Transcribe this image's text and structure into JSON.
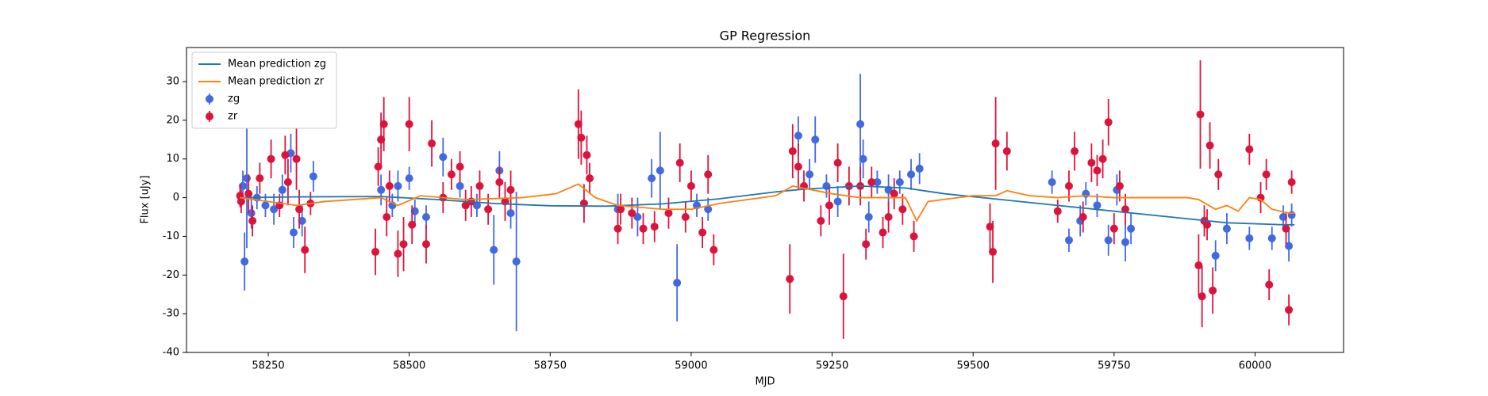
{
  "chart_data": {
    "type": "errorbar",
    "title": "GP Regression",
    "xlabel": "MJD",
    "ylabel": "Flux [uJy]",
    "xlim": [
      58105,
      60157
    ],
    "ylim": [
      -40,
      38.8
    ],
    "xticks": [
      58250,
      58500,
      58750,
      59000,
      59250,
      59500,
      59750,
      60000
    ],
    "yticks": [
      -40,
      -30,
      -20,
      -10,
      0,
      10,
      20,
      30
    ],
    "legend": "upper left",
    "series": [
      {
        "name": "Mean prediction zg",
        "kind": "line",
        "color": "#1f77b4",
        "x": [
          58200,
          58300,
          58450,
          58550,
          58650,
          58750,
          58850,
          58950,
          59050,
          59150,
          59200,
          59300,
          59380,
          59450,
          59550,
          59650,
          59750,
          59850,
          59950,
          60050,
          60070
        ],
        "values": [
          0,
          0.2,
          0.3,
          -0.5,
          -1.5,
          -2.1,
          -2.2,
          -1.6,
          -0.3,
          1.5,
          2.2,
          3,
          2.5,
          1,
          -0.5,
          -2,
          -3.5,
          -5,
          -6.5,
          -7,
          -7
        ]
      },
      {
        "name": "Mean prediction zr",
        "kind": "line",
        "color": "#ff7f0e",
        "x": [
          58200,
          58250,
          58300,
          58350,
          58450,
          58480,
          58520,
          58600,
          58700,
          58760,
          58800,
          58830,
          58870,
          58950,
          59000,
          59050,
          59150,
          59180,
          59250,
          59300,
          59380,
          59400,
          59420,
          59500,
          59540,
          59560,
          59600,
          59650,
          59700,
          59750,
          59800,
          59880,
          59900,
          59930,
          59950,
          59970,
          59990,
          60010,
          60030,
          60060,
          60070
        ],
        "values": [
          0,
          -1,
          -2,
          -1,
          0,
          -2,
          0.5,
          -0.5,
          0,
          1,
          3.5,
          0,
          -2,
          -3,
          -3,
          -1.5,
          0.5,
          3,
          1,
          0,
          0,
          -6,
          -1,
          0.5,
          0.5,
          1.8,
          0.5,
          0,
          0.5,
          0,
          0,
          0,
          -0.5,
          -3,
          -2,
          -3.5,
          0,
          -0.5,
          -3,
          -4,
          -4
        ]
      },
      {
        "name": "zg",
        "kind": "errorbar",
        "color": "#4169e1",
        "x": [
          58205,
          58208,
          58212,
          58220,
          58230,
          58245,
          58260,
          58275,
          58290,
          58295,
          58310,
          58330,
          58450,
          58470,
          58480,
          58500,
          58510,
          58530,
          58560,
          58590,
          58620,
          58650,
          58660,
          58680,
          58690,
          58870,
          58905,
          58930,
          58945,
          58975,
          59010,
          59030,
          59190,
          59210,
          59220,
          59240,
          59260,
          59300,
          59305,
          59315,
          59330,
          59350,
          59370,
          59390,
          59405,
          59640,
          59670,
          59690,
          59700,
          59720,
          59740,
          59755,
          59770,
          59780,
          59930,
          59950,
          59990,
          60030,
          60050,
          60060,
          60065
        ],
        "values": [
          3,
          -16.5,
          5,
          -4,
          0,
          -2,
          -3,
          2,
          11.5,
          -9,
          -6,
          5.5,
          2,
          -2,
          3,
          5,
          -3.5,
          -5,
          10.5,
          3,
          -2,
          -13.5,
          7,
          -4,
          -16.5,
          -3,
          -5,
          5,
          7,
          -22,
          -2,
          -3,
          16,
          6,
          15,
          3,
          -1,
          19,
          10,
          -5,
          4,
          2,
          4,
          6,
          7.5,
          4,
          -11,
          -6,
          1,
          -2,
          -11,
          2,
          -11.5,
          -8,
          -15,
          -8,
          -10.5,
          -10.5,
          -5,
          -12.5,
          -4.5
        ],
        "errors": [
          4,
          7.5,
          18,
          4,
          3,
          3,
          4,
          4,
          5,
          4,
          4,
          4,
          4,
          3,
          4,
          3,
          3,
          3,
          5,
          3,
          3,
          9,
          5,
          4,
          18,
          4,
          5,
          5,
          10,
          10,
          3,
          3,
          5,
          4,
          6,
          3,
          4,
          13,
          5,
          4,
          3,
          4,
          3,
          4,
          4,
          3,
          3,
          4,
          3,
          3,
          4,
          4,
          5,
          4,
          4,
          4,
          3,
          3,
          3,
          4,
          3
        ]
      },
      {
        "name": "zr",
        "kind": "errorbar",
        "color": "#dc143c",
        "x": [
          58200,
          58202,
          58215,
          58222,
          58235,
          58255,
          58270,
          58280,
          58285,
          58300,
          58305,
          58315,
          58325,
          58440,
          58445,
          58450,
          58455,
          58460,
          58465,
          58480,
          58490,
          58500,
          58505,
          58530,
          58540,
          58560,
          58575,
          58590,
          58600,
          58610,
          58625,
          58640,
          58660,
          58670,
          58680,
          58800,
          58805,
          58810,
          58815,
          58820,
          58870,
          58875,
          58895,
          58915,
          58935,
          58960,
          58980,
          58990,
          59000,
          59020,
          59030,
          59040,
          59175,
          59180,
          59190,
          59200,
          59230,
          59245,
          59260,
          59270,
          59280,
          59300,
          59310,
          59320,
          59340,
          59350,
          59360,
          59375,
          59395,
          59530,
          59535,
          59540,
          59560,
          59650,
          59670,
          59680,
          59695,
          59710,
          59720,
          59730,
          59740,
          59750,
          59760,
          59770,
          59900,
          59903,
          59906,
          59910,
          59915,
          59920,
          59925,
          59935,
          59990,
          60010,
          60020,
          60025,
          60055,
          60060,
          60065
        ],
        "values": [
          0.5,
          -1,
          1,
          -6,
          5,
          10,
          -2,
          11,
          4,
          10,
          -3,
          -13.5,
          -1.5,
          -14,
          8,
          15,
          19,
          -5,
          3,
          -14.5,
          -12,
          19,
          -7,
          -12,
          14,
          0,
          6,
          8,
          -2,
          -1,
          3,
          -3,
          4,
          -1,
          2,
          19,
          15.5,
          -1.5,
          11,
          5,
          -8,
          -3,
          -4,
          -8,
          -7.5,
          -4,
          9,
          -5,
          3,
          -9,
          6,
          -13.5,
          -21,
          12,
          8,
          3,
          -6,
          -2,
          9,
          -25.5,
          3,
          3,
          -12,
          4,
          -9,
          -5,
          1,
          -3,
          -10,
          -7.5,
          -14,
          14,
          12,
          -3.5,
          3,
          12,
          -5,
          9,
          7,
          10,
          19.5,
          -8,
          3,
          -3,
          -17.5,
          21.5,
          -25.5,
          -6,
          -7,
          13.5,
          -24,
          6,
          12.5,
          0,
          6,
          -22.5,
          -8,
          -29,
          4
        ],
        "errors": [
          3,
          3,
          5,
          4,
          4,
          5,
          3,
          5,
          6,
          8,
          5,
          6,
          3,
          6,
          5,
          7,
          7,
          5,
          4,
          6,
          7,
          7,
          5,
          5,
          6,
          4,
          4,
          4,
          4,
          4,
          4,
          4,
          4,
          5,
          5,
          9,
          7,
          5,
          5,
          4,
          4,
          4,
          4,
          4,
          4,
          4,
          5,
          4,
          4,
          4,
          5,
          4,
          9,
          7,
          6,
          4,
          4,
          5,
          5,
          11,
          5,
          5,
          4,
          4,
          4,
          4,
          4,
          4,
          4,
          6,
          8,
          12,
          5,
          3,
          4,
          5,
          4,
          5,
          4,
          5,
          6,
          4,
          4,
          4,
          8,
          14,
          8,
          4,
          4,
          6,
          6,
          4,
          4,
          4,
          4,
          4,
          4,
          4,
          3
        ]
      }
    ]
  }
}
